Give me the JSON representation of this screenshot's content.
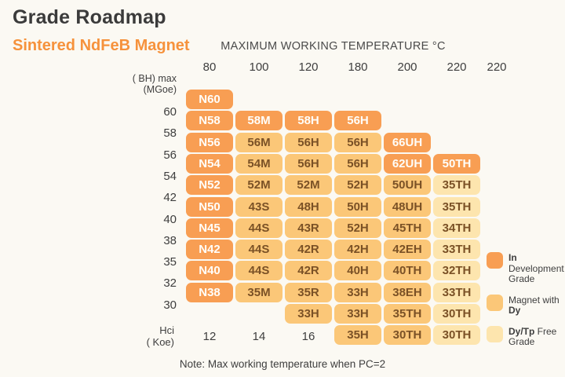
{
  "title": "Grade Roadmap",
  "subtitle": "Sintered NdFeB Magnet",
  "note": "Note: Max working temperature when PC=2",
  "colors": {
    "background": "#FBF9F3",
    "subtitle_accent": "#F6923C",
    "cell_in_development": "#F89E53",
    "cell_magnet_with_dy": "#FBC778",
    "cell_dy_free": "#FDE5AE",
    "cell_text_dark": "#7A5126",
    "cell_text_light": "#FFFEFA",
    "text_dark": "#3E3E3E"
  },
  "chart_data": {
    "type": "heatmap",
    "title": "MAXIMUM WORKING TEMPERATURE °C",
    "column_headers": [
      "80",
      "100",
      "120",
      "180",
      "200",
      "220",
      "220"
    ],
    "left_axis_top": [
      "( BH) max",
      "(MGoe)"
    ],
    "left_axis_bottom": [
      "Hci",
      "( Koe)"
    ],
    "row_labels": [
      "60",
      "58",
      "56",
      "54",
      "42",
      "40",
      "38",
      "35",
      "32",
      "30"
    ],
    "hci_values": [
      "12",
      "14",
      "16"
    ],
    "category_meaning": {
      "dev": "In Development Grade",
      "dy": "Magnet with Dy",
      "dyfree": "Dy/Tp Free Grade"
    },
    "rows": [
      {
        "label": "",
        "cells": [
          {
            "col": 0,
            "text": "N60",
            "cat": "dev"
          }
        ]
      },
      {
        "label": "60",
        "cells": [
          {
            "col": 0,
            "text": "N58",
            "cat": "dev"
          },
          {
            "col": 1,
            "text": "58M",
            "cat": "dev"
          },
          {
            "col": 2,
            "text": "58H",
            "cat": "dev"
          },
          {
            "col": 3,
            "text": "56H",
            "cat": "dev"
          }
        ]
      },
      {
        "label": "58",
        "cells": [
          {
            "col": 0,
            "text": "N56",
            "cat": "dev"
          },
          {
            "col": 1,
            "text": "56M",
            "cat": "dy"
          },
          {
            "col": 2,
            "text": "56H",
            "cat": "dy"
          },
          {
            "col": 3,
            "text": "56H",
            "cat": "dy"
          },
          {
            "col": 4,
            "text": "66UH",
            "cat": "dev"
          }
        ]
      },
      {
        "label": "56",
        "cells": [
          {
            "col": 0,
            "text": "N54",
            "cat": "dev"
          },
          {
            "col": 1,
            "text": "54M",
            "cat": "dy"
          },
          {
            "col": 2,
            "text": "56H",
            "cat": "dy"
          },
          {
            "col": 3,
            "text": "56H",
            "cat": "dy"
          },
          {
            "col": 4,
            "text": "62UH",
            "cat": "dev"
          },
          {
            "col": 5,
            "text": "50TH",
            "cat": "dev"
          }
        ]
      },
      {
        "label": "54",
        "cells": [
          {
            "col": 0,
            "text": "N52",
            "cat": "dev"
          },
          {
            "col": 1,
            "text": "52M",
            "cat": "dy"
          },
          {
            "col": 2,
            "text": "52M",
            "cat": "dy"
          },
          {
            "col": 3,
            "text": "52H",
            "cat": "dy"
          },
          {
            "col": 4,
            "text": "50UH",
            "cat": "dy"
          },
          {
            "col": 5,
            "text": "35TH",
            "cat": "dyfree"
          }
        ]
      },
      {
        "label": "42",
        "cells": [
          {
            "col": 0,
            "text": "N50",
            "cat": "dev"
          },
          {
            "col": 1,
            "text": "43S",
            "cat": "dy"
          },
          {
            "col": 2,
            "text": "48H",
            "cat": "dy"
          },
          {
            "col": 3,
            "text": "50H",
            "cat": "dy"
          },
          {
            "col": 4,
            "text": "48UH",
            "cat": "dy"
          },
          {
            "col": 5,
            "text": "35TH",
            "cat": "dyfree"
          }
        ]
      },
      {
        "label": "40",
        "cells": [
          {
            "col": 0,
            "text": "N45",
            "cat": "dev"
          },
          {
            "col": 1,
            "text": "44S",
            "cat": "dy"
          },
          {
            "col": 2,
            "text": "43R",
            "cat": "dy"
          },
          {
            "col": 3,
            "text": "52H",
            "cat": "dy"
          },
          {
            "col": 4,
            "text": "45TH",
            "cat": "dy"
          },
          {
            "col": 5,
            "text": "34TH",
            "cat": "dyfree"
          }
        ]
      },
      {
        "label": "38",
        "cells": [
          {
            "col": 0,
            "text": "N42",
            "cat": "dev"
          },
          {
            "col": 1,
            "text": "44S",
            "cat": "dy"
          },
          {
            "col": 2,
            "text": "42R",
            "cat": "dy"
          },
          {
            "col": 3,
            "text": "42H",
            "cat": "dy"
          },
          {
            "col": 4,
            "text": "42EH",
            "cat": "dy"
          },
          {
            "col": 5,
            "text": "33TH",
            "cat": "dyfree"
          }
        ]
      },
      {
        "label": "35",
        "cells": [
          {
            "col": 0,
            "text": "N40",
            "cat": "dev"
          },
          {
            "col": 1,
            "text": "44S",
            "cat": "dy"
          },
          {
            "col": 2,
            "text": "42R",
            "cat": "dy"
          },
          {
            "col": 3,
            "text": "40H",
            "cat": "dy"
          },
          {
            "col": 4,
            "text": "40TH",
            "cat": "dy"
          },
          {
            "col": 5,
            "text": "32TH",
            "cat": "dyfree"
          }
        ]
      },
      {
        "label": "32",
        "cells": [
          {
            "col": 0,
            "text": "N38",
            "cat": "dev"
          },
          {
            "col": 1,
            "text": "35M",
            "cat": "dy"
          },
          {
            "col": 2,
            "text": "35R",
            "cat": "dy"
          },
          {
            "col": 3,
            "text": "33H",
            "cat": "dy"
          },
          {
            "col": 4,
            "text": "38EH",
            "cat": "dy"
          },
          {
            "col": 5,
            "text": "33TH",
            "cat": "dyfree"
          }
        ]
      },
      {
        "label": "30",
        "cells": [
          {
            "col": 2,
            "text": "33H",
            "cat": "dy"
          },
          {
            "col": 3,
            "text": "33H",
            "cat": "dy"
          },
          {
            "col": 4,
            "text": "35TH",
            "cat": "dy"
          },
          {
            "col": 5,
            "text": "30TH",
            "cat": "dyfree"
          }
        ]
      },
      {
        "label": "",
        "cells": [
          {
            "col": 3,
            "text": "35H",
            "cat": "dy"
          },
          {
            "col": 4,
            "text": "30TH",
            "cat": "dy"
          },
          {
            "col": 5,
            "text": "30TH",
            "cat": "dyfree"
          }
        ]
      }
    ],
    "legend": [
      {
        "cat": "dev",
        "segments": [
          {
            "text": "In",
            "bold": true
          },
          {
            "text": " Development Grade",
            "bold": false
          }
        ]
      },
      {
        "cat": "dy",
        "segments": [
          {
            "text": "Magnet with ",
            "bold": false
          },
          {
            "text": "Dy",
            "bold": true
          }
        ]
      },
      {
        "cat": "dyfree",
        "segments": [
          {
            "text": "Dy/Tp",
            "bold": true
          },
          {
            "text": " Free Grade",
            "bold": false
          }
        ]
      }
    ]
  }
}
